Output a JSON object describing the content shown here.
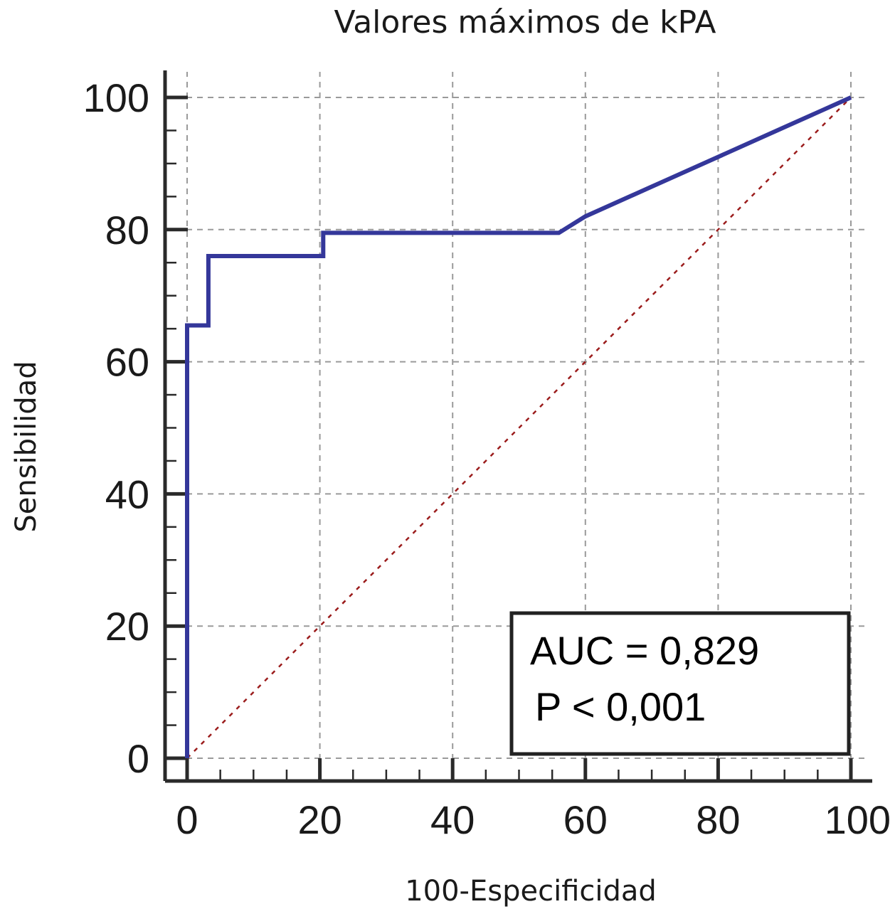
{
  "chart_data": {
    "type": "line",
    "title": "Valores máximos de kPA",
    "xlabel": "100-Especificidad",
    "ylabel": "Sensibilidad",
    "xlim": [
      0,
      100
    ],
    "ylim": [
      0,
      100
    ],
    "x_ticks": [
      "0",
      "20",
      "40",
      "60",
      "80",
      "100"
    ],
    "y_ticks": [
      "0",
      "20",
      "40",
      "60",
      "80",
      "100"
    ],
    "grid": true,
    "series": [
      {
        "color": "#34379a",
        "x": [
          0,
          0,
          3.2,
          3.2,
          20.5,
          20.5,
          56,
          60,
          70,
          80,
          90,
          100
        ],
        "y": [
          0,
          65.5,
          65.5,
          76,
          76,
          79.5,
          79.5,
          82,
          86.5,
          91,
          95.5,
          100
        ]
      },
      {
        "color": "#9b1c1c",
        "style": "dotted",
        "x": [
          0,
          100
        ],
        "y": [
          0,
          100
        ]
      }
    ],
    "annotations": {
      "auc": "AUC = 0,829",
      "p": "P < 0,001"
    }
  }
}
